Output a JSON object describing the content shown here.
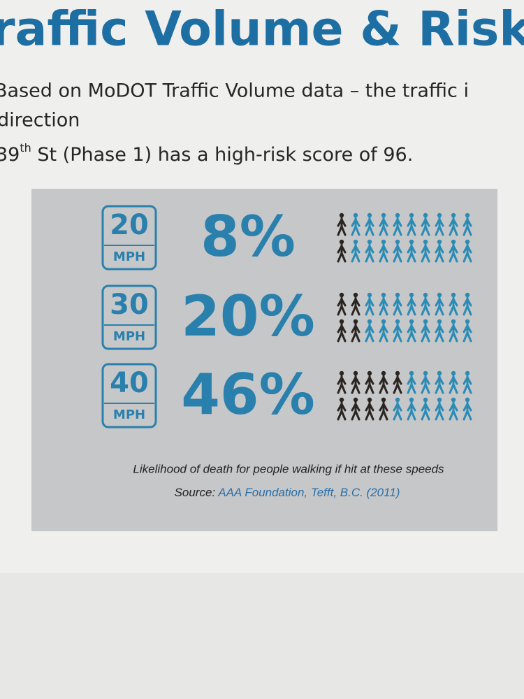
{
  "header": {
    "title": "raffic Volume & Risk A"
  },
  "body": {
    "lines": [
      "Based on MoDOT Traffic Volume data – the traffic i",
      "direction"
    ],
    "line3": {
      "number": "39",
      "suffix": "th",
      "rest": " St (Phase 1) has a high-risk score of 96."
    }
  },
  "infographic": {
    "figures_per_row": 10,
    "rows": [
      {
        "speed": "20",
        "unit": "MPH",
        "percent": "8%",
        "dark_figures": [
          1,
          1
        ]
      },
      {
        "speed": "30",
        "unit": "MPH",
        "percent": "20%",
        "dark_figures": [
          2,
          2
        ]
      },
      {
        "speed": "40",
        "unit": "MPH",
        "percent": "46%",
        "dark_figures": [
          5,
          4
        ]
      }
    ],
    "caption": "Likelihood of death for people walking if hit at these speeds",
    "source_label": "Source:",
    "source": "AAA Foundation, Tefft, B.C. (2011)"
  }
}
